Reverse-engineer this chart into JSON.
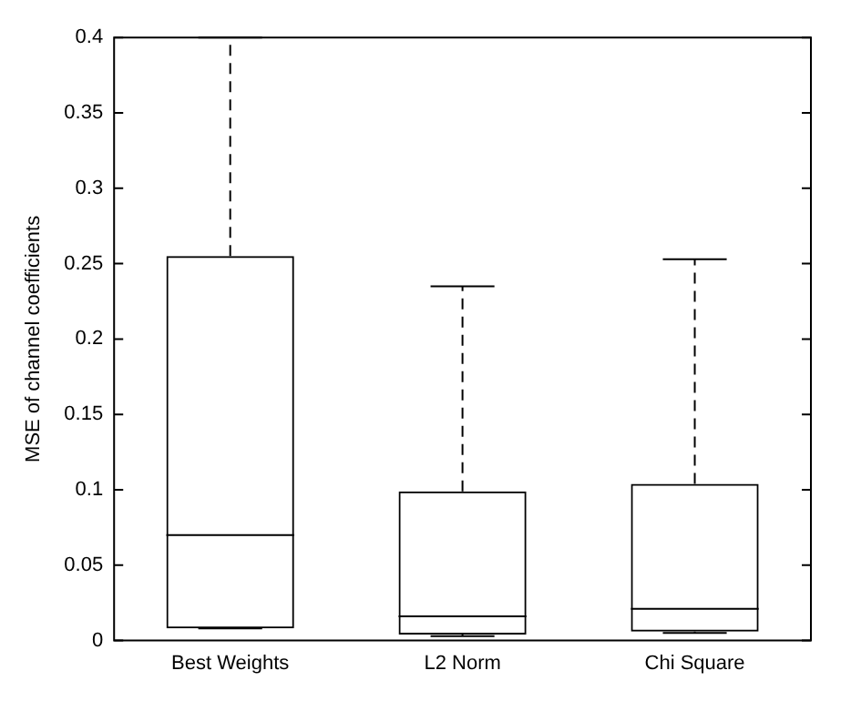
{
  "chart_data": {
    "type": "box",
    "ylabel": "MSE of channel coefficients",
    "categories": [
      "Best Weights",
      "L2 Norm",
      "Chi Square"
    ],
    "boxes": [
      {
        "low": 0.008,
        "q1": 0.008,
        "median": 0.07,
        "q3": 0.255,
        "high": 0.4
      },
      {
        "low": 0.003,
        "q1": 0.004,
        "median": 0.016,
        "q3": 0.099,
        "high": 0.235
      },
      {
        "low": 0.005,
        "q1": 0.006,
        "median": 0.021,
        "q3": 0.104,
        "high": 0.253
      }
    ],
    "ylim": [
      0,
      0.4
    ],
    "yticks": [
      0,
      0.05,
      0.1,
      0.15,
      0.2,
      0.25,
      0.3,
      0.35,
      0.4
    ],
    "grid": false,
    "line_style": "dashed"
  }
}
